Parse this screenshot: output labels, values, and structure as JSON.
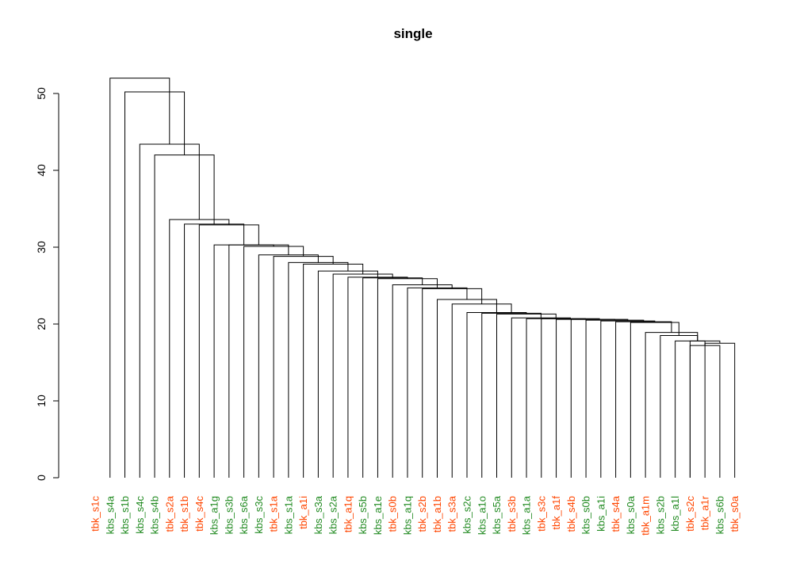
{
  "chart_data": {
    "type": "dendrogram",
    "title": "single",
    "xlabel": "",
    "ylabel": "",
    "ylim": [
      0,
      52
    ],
    "yticks": [
      0,
      10,
      20,
      30,
      40,
      50
    ],
    "grid": false,
    "colors": {
      "tbk": "#ff4500",
      "kbs": "#228b22",
      "line": "#000000"
    },
    "labels": [
      "tbk_s1c",
      "kbs_s4a",
      "kbs_s1b",
      "kbs_s4c",
      "kbs_s4b",
      "tbk_s2a",
      "tbk_s1b",
      "tbk_s4c",
      "kbs_a1g",
      "kbs_s3b",
      "kbs_s6a",
      "kbs_s3c",
      "tbk_s1a",
      "kbs_s1a",
      "tbk_a1i",
      "kbs_s3a",
      "kbs_s2a",
      "tbk_a1q",
      "kbs_s5b",
      "kbs_a1e",
      "tbk_s0b",
      "kbs_a1q",
      "tbk_s2b",
      "tbk_a1b",
      "tbk_s3a",
      "kbs_s2c",
      "kbs_a1o",
      "kbs_s5a",
      "tbk_s3b",
      "kbs_a1a",
      "tbk_s3c",
      "tbk_a1f",
      "tbk_s4b",
      "kbs_s0b",
      "kbs_a1i",
      "tbk_s4a",
      "kbs_s0a",
      "tbk_a1m",
      "kbs_s2b",
      "kbs_a1l",
      "tbk_s2c",
      "tbk_a1r",
      "kbs_s6b",
      "tbk_s0a"
    ],
    "label_colors": [
      "tbk",
      "kbs",
      "kbs",
      "kbs",
      "kbs",
      "tbk",
      "tbk",
      "tbk",
      "kbs",
      "kbs",
      "kbs",
      "kbs",
      "tbk",
      "kbs",
      "tbk",
      "kbs",
      "kbs",
      "tbk",
      "kbs",
      "kbs",
      "tbk",
      "kbs",
      "tbk",
      "tbk",
      "tbk",
      "kbs",
      "kbs",
      "kbs",
      "tbk",
      "kbs",
      "tbk",
      "tbk",
      "tbk",
      "kbs",
      "kbs",
      "tbk",
      "kbs",
      "tbk",
      "kbs",
      "kbs",
      "tbk",
      "tbk",
      "kbs",
      "tbk"
    ],
    "merges": [
      [
        41,
        43,
        17.2
      ],
      [
        42,
        44,
        17.5
      ],
      [
        41,
        45,
        17.8
      ],
      [
        40,
        46,
        17.8
      ],
      [
        39,
        47,
        18.5
      ],
      [
        38,
        48,
        18.9
      ],
      [
        37,
        49,
        20.2
      ],
      [
        36,
        50,
        20.3
      ],
      [
        35,
        51,
        20.4
      ],
      [
        34,
        52,
        20.5
      ],
      [
        33,
        53,
        20.6
      ],
      [
        32,
        54,
        20.6
      ],
      [
        31,
        55,
        20.7
      ],
      [
        30,
        56,
        20.7
      ],
      [
        29,
        57,
        20.8
      ],
      [
        28,
        58,
        21.3
      ],
      [
        27,
        59,
        21.4
      ],
      [
        26,
        60,
        21.5
      ],
      [
        25,
        61,
        22.6
      ],
      [
        24,
        62,
        23.2
      ],
      [
        23,
        63,
        24.6
      ],
      [
        22,
        64,
        24.7
      ],
      [
        21,
        65,
        25.1
      ],
      [
        20,
        66,
        25.9
      ],
      [
        19,
        67,
        26.0
      ],
      [
        18,
        68,
        26.1
      ],
      [
        17,
        69,
        26.5
      ],
      [
        16,
        70,
        26.9
      ],
      [
        15,
        71,
        27.8
      ],
      [
        14,
        72,
        28.0
      ],
      [
        13,
        73,
        28.8
      ],
      [
        12,
        74,
        29.0
      ],
      [
        11,
        75,
        30.1
      ],
      [
        10,
        76,
        30.3
      ],
      [
        9,
        77,
        30.3
      ],
      [
        8,
        78,
        32.9
      ],
      [
        7,
        79,
        33.0
      ],
      [
        6,
        80,
        33.6
      ],
      [
        5,
        81,
        42.0
      ],
      [
        4,
        82,
        43.4
      ],
      [
        3,
        83,
        50.2
      ],
      [
        2,
        84,
        52.0
      ]
    ]
  }
}
